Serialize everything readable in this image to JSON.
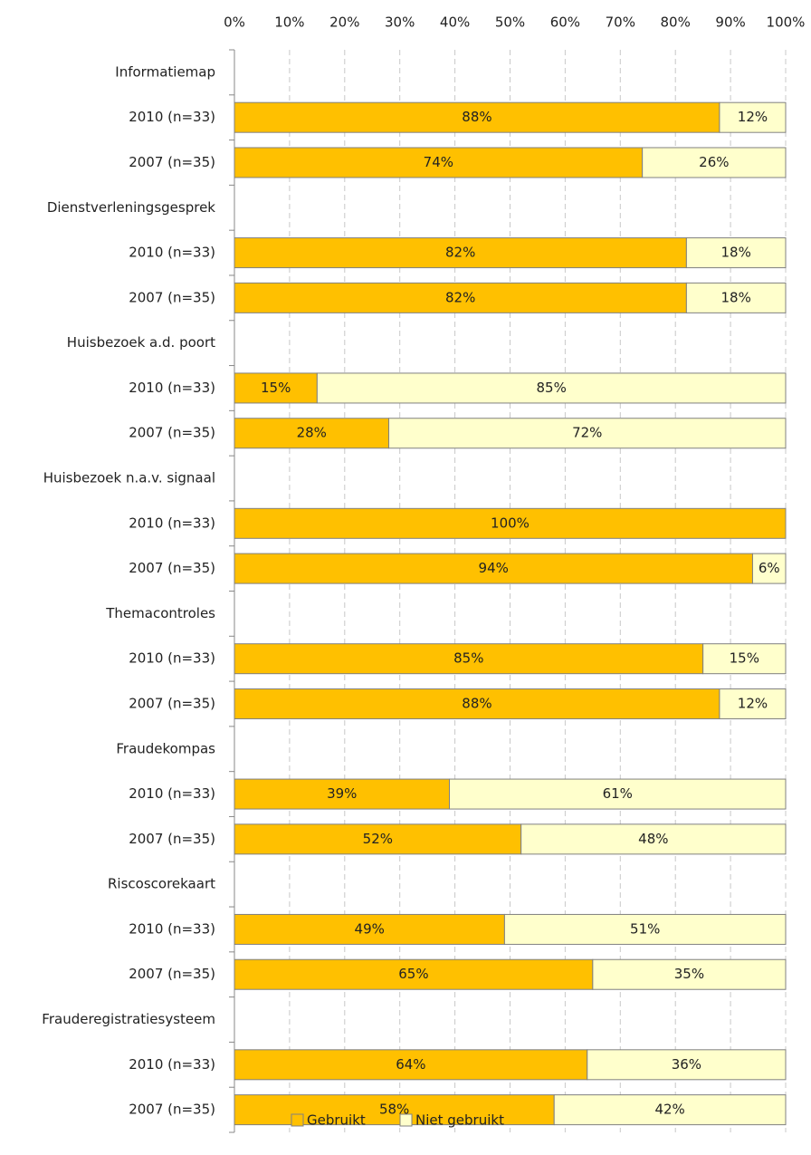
{
  "chart_data": {
    "type": "stacked_barh",
    "categories": [
      "Informatiemap",
      "2010 (n=33)",
      "2007 (n=35)",
      "Dienstverleningsgesprek",
      "2010 (n=33)",
      "2007 (n=35)",
      "Huisbezoek a.d. poort",
      "2010 (n=33)",
      "2007 (n=35)",
      "Huisbezoek n.a.v. signaal",
      "2010 (n=33)",
      "2007 (n=35)",
      "Themacontroles",
      "2010 (n=33)",
      "2007 (n=35)",
      "Fraudekompas",
      "2010 (n=33)",
      "2007 (n=35)",
      "Riscoscorekaart",
      "2010 (n=33)",
      "2007 (n=35)",
      "Frauderegistratiesysteem",
      "2010 (n=33)",
      "2007 (n=35)"
    ],
    "series": [
      {
        "name": "Gebruikt",
        "color": "#ffc000",
        "values": [
          null,
          88,
          74,
          null,
          82,
          82,
          null,
          15,
          28,
          null,
          100,
          94,
          null,
          85,
          88,
          null,
          39,
          52,
          null,
          49,
          65,
          null,
          64,
          58
        ],
        "value_labels": [
          null,
          "88%",
          "74%",
          null,
          "82%",
          "82%",
          null,
          "15%",
          "28%",
          null,
          "100%",
          "94%",
          null,
          "85%",
          "88%",
          null,
          "39%",
          "52%",
          null,
          "49%",
          "65%",
          null,
          "64%",
          "58%"
        ]
      },
      {
        "name": "Niet gebruikt",
        "color": "#ffffcc",
        "values": [
          null,
          12,
          26,
          null,
          18,
          18,
          null,
          85,
          72,
          null,
          0,
          6,
          null,
          15,
          12,
          null,
          61,
          48,
          null,
          51,
          35,
          null,
          36,
          42
        ],
        "value_labels": [
          null,
          "12%",
          "26%",
          null,
          "18%",
          "18%",
          null,
          "85%",
          "72%",
          null,
          null,
          "6%",
          null,
          "15%",
          "12%",
          null,
          "61%",
          "48%",
          null,
          "51%",
          "35%",
          null,
          "36%",
          "42%"
        ]
      }
    ],
    "xlim": [
      0,
      100
    ],
    "xticks": [
      {
        "value": 0,
        "label": "0%"
      },
      {
        "value": 10,
        "label": "10%"
      },
      {
        "value": 20,
        "label": "20%"
      },
      {
        "value": 30,
        "label": "30%"
      },
      {
        "value": 40,
        "label": "40%"
      },
      {
        "value": 50,
        "label": "50%"
      },
      {
        "value": 60,
        "label": "60%"
      },
      {
        "value": 70,
        "label": "70%"
      },
      {
        "value": 80,
        "label": "80%"
      },
      {
        "value": 90,
        "label": "90%"
      },
      {
        "value": 100,
        "label": "100%"
      }
    ],
    "grid": true,
    "legend": "bottom"
  }
}
